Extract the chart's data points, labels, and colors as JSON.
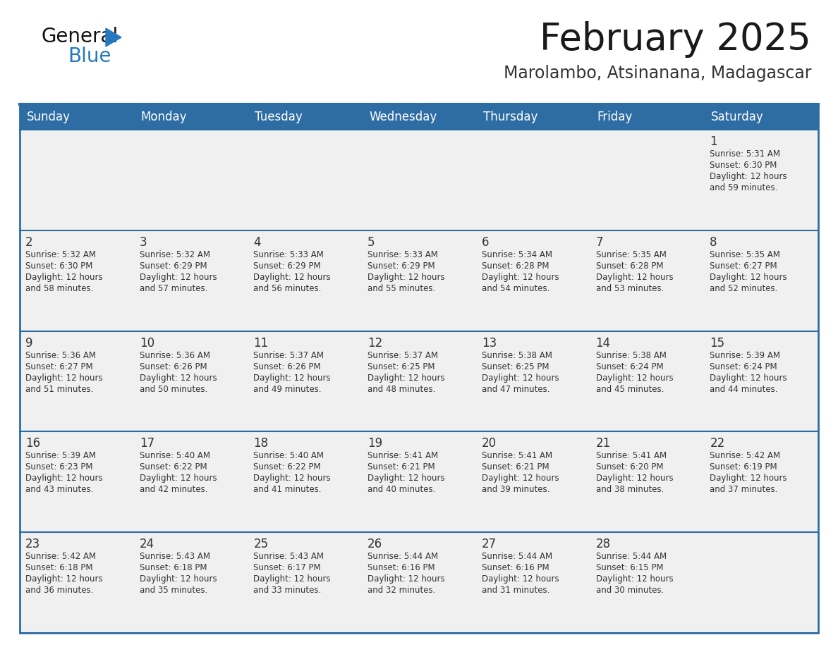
{
  "title": "February 2025",
  "subtitle": "Marolambo, Atsinanana, Madagascar",
  "days_of_week": [
    "Sunday",
    "Monday",
    "Tuesday",
    "Wednesday",
    "Thursday",
    "Friday",
    "Saturday"
  ],
  "header_bg": "#2E6DA4",
  "header_text": "#FFFFFF",
  "cell_bg": "#F0F0F0",
  "row_sep_color": "#2E6DA4",
  "text_color": "#333333",
  "day_num_color": "#333333",
  "title_color": "#1a1a1a",
  "subtitle_color": "#333333",
  "logo_general_color": "#111111",
  "logo_blue_color": "#2478C0",
  "calendar_data": [
    [
      null,
      null,
      null,
      null,
      null,
      null,
      {
        "day": 1,
        "sunrise": "5:31 AM",
        "sunset": "6:30 PM",
        "daylight_hours": 12,
        "daylight_minutes": 59
      }
    ],
    [
      {
        "day": 2,
        "sunrise": "5:32 AM",
        "sunset": "6:30 PM",
        "daylight_hours": 12,
        "daylight_minutes": 58
      },
      {
        "day": 3,
        "sunrise": "5:32 AM",
        "sunset": "6:29 PM",
        "daylight_hours": 12,
        "daylight_minutes": 57
      },
      {
        "day": 4,
        "sunrise": "5:33 AM",
        "sunset": "6:29 PM",
        "daylight_hours": 12,
        "daylight_minutes": 56
      },
      {
        "day": 5,
        "sunrise": "5:33 AM",
        "sunset": "6:29 PM",
        "daylight_hours": 12,
        "daylight_minutes": 55
      },
      {
        "day": 6,
        "sunrise": "5:34 AM",
        "sunset": "6:28 PM",
        "daylight_hours": 12,
        "daylight_minutes": 54
      },
      {
        "day": 7,
        "sunrise": "5:35 AM",
        "sunset": "6:28 PM",
        "daylight_hours": 12,
        "daylight_minutes": 53
      },
      {
        "day": 8,
        "sunrise": "5:35 AM",
        "sunset": "6:27 PM",
        "daylight_hours": 12,
        "daylight_minutes": 52
      }
    ],
    [
      {
        "day": 9,
        "sunrise": "5:36 AM",
        "sunset": "6:27 PM",
        "daylight_hours": 12,
        "daylight_minutes": 51
      },
      {
        "day": 10,
        "sunrise": "5:36 AM",
        "sunset": "6:26 PM",
        "daylight_hours": 12,
        "daylight_minutes": 50
      },
      {
        "day": 11,
        "sunrise": "5:37 AM",
        "sunset": "6:26 PM",
        "daylight_hours": 12,
        "daylight_minutes": 49
      },
      {
        "day": 12,
        "sunrise": "5:37 AM",
        "sunset": "6:25 PM",
        "daylight_hours": 12,
        "daylight_minutes": 48
      },
      {
        "day": 13,
        "sunrise": "5:38 AM",
        "sunset": "6:25 PM",
        "daylight_hours": 12,
        "daylight_minutes": 47
      },
      {
        "day": 14,
        "sunrise": "5:38 AM",
        "sunset": "6:24 PM",
        "daylight_hours": 12,
        "daylight_minutes": 45
      },
      {
        "day": 15,
        "sunrise": "5:39 AM",
        "sunset": "6:24 PM",
        "daylight_hours": 12,
        "daylight_minutes": 44
      }
    ],
    [
      {
        "day": 16,
        "sunrise": "5:39 AM",
        "sunset": "6:23 PM",
        "daylight_hours": 12,
        "daylight_minutes": 43
      },
      {
        "day": 17,
        "sunrise": "5:40 AM",
        "sunset": "6:22 PM",
        "daylight_hours": 12,
        "daylight_minutes": 42
      },
      {
        "day": 18,
        "sunrise": "5:40 AM",
        "sunset": "6:22 PM",
        "daylight_hours": 12,
        "daylight_minutes": 41
      },
      {
        "day": 19,
        "sunrise": "5:41 AM",
        "sunset": "6:21 PM",
        "daylight_hours": 12,
        "daylight_minutes": 40
      },
      {
        "day": 20,
        "sunrise": "5:41 AM",
        "sunset": "6:21 PM",
        "daylight_hours": 12,
        "daylight_minutes": 39
      },
      {
        "day": 21,
        "sunrise": "5:41 AM",
        "sunset": "6:20 PM",
        "daylight_hours": 12,
        "daylight_minutes": 38
      },
      {
        "day": 22,
        "sunrise": "5:42 AM",
        "sunset": "6:19 PM",
        "daylight_hours": 12,
        "daylight_minutes": 37
      }
    ],
    [
      {
        "day": 23,
        "sunrise": "5:42 AM",
        "sunset": "6:18 PM",
        "daylight_hours": 12,
        "daylight_minutes": 36
      },
      {
        "day": 24,
        "sunrise": "5:43 AM",
        "sunset": "6:18 PM",
        "daylight_hours": 12,
        "daylight_minutes": 35
      },
      {
        "day": 25,
        "sunrise": "5:43 AM",
        "sunset": "6:17 PM",
        "daylight_hours": 12,
        "daylight_minutes": 33
      },
      {
        "day": 26,
        "sunrise": "5:44 AM",
        "sunset": "6:16 PM",
        "daylight_hours": 12,
        "daylight_minutes": 32
      },
      {
        "day": 27,
        "sunrise": "5:44 AM",
        "sunset": "6:16 PM",
        "daylight_hours": 12,
        "daylight_minutes": 31
      },
      {
        "day": 28,
        "sunrise": "5:44 AM",
        "sunset": "6:15 PM",
        "daylight_hours": 12,
        "daylight_minutes": 30
      },
      null
    ]
  ]
}
